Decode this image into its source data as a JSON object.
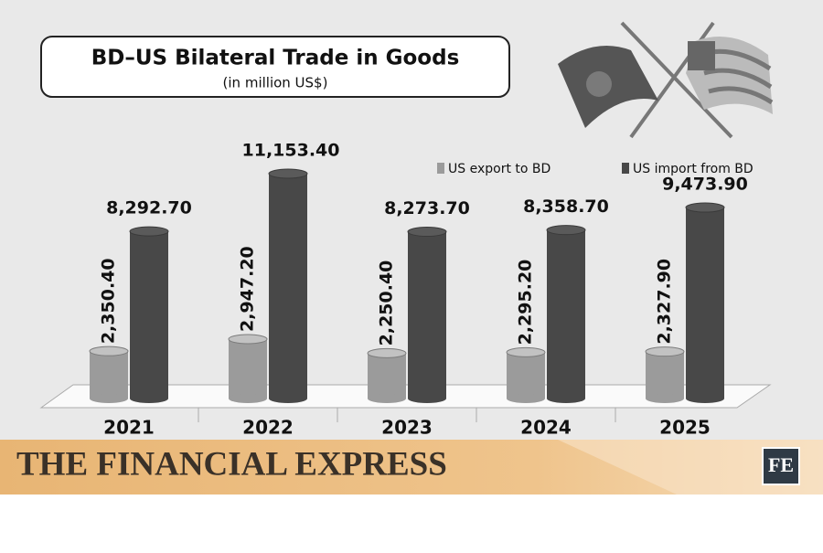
{
  "chart_data": {
    "type": "bar3d",
    "title": "BD–US Bilateral Trade in Goods",
    "subtitle": "(in million US$)",
    "categories": [
      "2021",
      "2022",
      "2023",
      "2024",
      "2025"
    ],
    "series": [
      {
        "name": "US export to BD",
        "color": "#9b9b9b",
        "values": [
          2350.4,
          2947.2,
          2250.4,
          2295.2,
          2327.9
        ],
        "value_labels": [
          "2,350.40",
          "2,947.20",
          "2,250.40",
          "2,295.20",
          "2,327.90"
        ]
      },
      {
        "name": "US import from BD",
        "color": "#484848",
        "values": [
          8292.7,
          11153.4,
          8273.7,
          8358.7,
          9473.9
        ],
        "value_labels": [
          "8,292.70",
          "11,153.40",
          "8,273.70",
          "8,358.70",
          "9,473.90"
        ]
      }
    ]
  },
  "branding": {
    "publisher": "THE FINANCIAL EXPRESS",
    "logo": "FE"
  }
}
